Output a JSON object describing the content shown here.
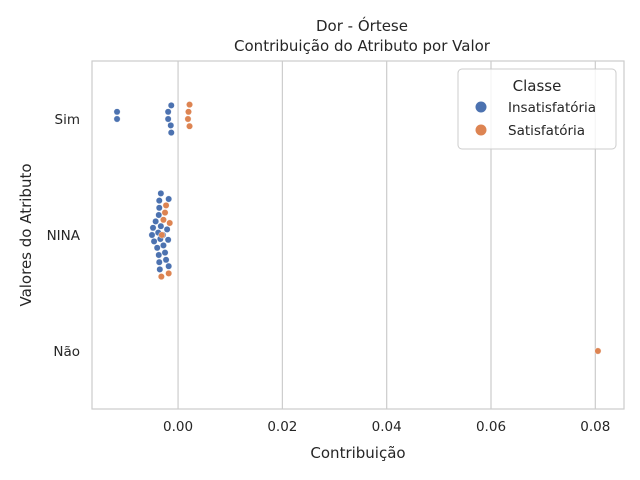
{
  "chart_data": {
    "type": "scatter",
    "subtype": "swarm",
    "title": "Dor - Órtese",
    "subtitle": "Contribuição do Atributo por Valor",
    "xlabel": "Contribuição",
    "ylabel": "Valores do Atributo",
    "xlim": [
      -0.0165,
      0.0855
    ],
    "x_ticks": [
      0.0,
      0.02,
      0.04,
      0.06,
      0.08
    ],
    "x_tick_labels": [
      "0.00",
      "0.02",
      "0.04",
      "0.06",
      "0.08"
    ],
    "categories": [
      "Sim",
      "NINA",
      "Não"
    ],
    "grid": "vertical",
    "legend_position": "top-right",
    "legend": {
      "title": "Classe",
      "entries": [
        "Insatisfatória",
        "Satisfatória"
      ]
    },
    "colors": {
      "Insatisfatória": "#4c72b0",
      "Satisfatória": "#dd8452"
    },
    "series": [
      {
        "name": "Insatisfatória",
        "points": [
          {
            "category": "Sim",
            "x": -0.0117
          },
          {
            "category": "Sim",
            "x": -0.0117
          },
          {
            "category": "Sim",
            "x": -0.0013
          },
          {
            "category": "Sim",
            "x": -0.0019
          },
          {
            "category": "Sim",
            "x": -0.0019
          },
          {
            "category": "Sim",
            "x": -0.0014
          },
          {
            "category": "Sim",
            "x": -0.0013
          },
          {
            "category": "NINA",
            "x": -0.0033
          },
          {
            "category": "NINA",
            "x": -0.0028
          },
          {
            "category": "NINA",
            "x": -0.0018
          },
          {
            "category": "NINA",
            "x": -0.0035
          },
          {
            "category": "NINA",
            "x": -0.0018
          },
          {
            "category": "NINA",
            "x": -0.0036
          },
          {
            "category": "NINA",
            "x": -0.0038
          },
          {
            "category": "NINA",
            "x": -0.0029
          },
          {
            "category": "NINA",
            "x": -0.0043
          },
          {
            "category": "NINA",
            "x": -0.0019
          },
          {
            "category": "NINA",
            "x": -0.0048
          },
          {
            "category": "NINA",
            "x": -0.0033
          },
          {
            "category": "NINA",
            "x": -0.005
          },
          {
            "category": "NINA",
            "x": -0.0037
          },
          {
            "category": "NINA",
            "x": -0.0023
          },
          {
            "category": "NINA",
            "x": -0.0046
          },
          {
            "category": "NINA",
            "x": -0.004
          },
          {
            "category": "NINA",
            "x": -0.0037
          },
          {
            "category": "NINA",
            "x": -0.0025
          },
          {
            "category": "NINA",
            "x": -0.0036
          },
          {
            "category": "NINA",
            "x": -0.0021
          },
          {
            "category": "NINA",
            "x": -0.0036
          },
          {
            "category": "NINA",
            "x": -0.0034
          }
        ]
      },
      {
        "name": "Satisfatória",
        "points": [
          {
            "category": "Sim",
            "x": 0.002
          },
          {
            "category": "Sim",
            "x": 0.0019
          },
          {
            "category": "Sim",
            "x": 0.0022
          },
          {
            "category": "Sim",
            "x": 0.0022
          },
          {
            "category": "NINA",
            "x": -0.0032
          },
          {
            "category": "NINA",
            "x": -0.0023
          },
          {
            "category": "NINA",
            "x": -0.0031
          },
          {
            "category": "NINA",
            "x": -0.0018
          },
          {
            "category": "NINA",
            "x": -0.0025
          },
          {
            "category": "NINA",
            "x": -0.0016
          },
          {
            "category": "NINA",
            "x": -0.0028
          },
          {
            "category": "Não",
            "x": 0.0805
          }
        ]
      }
    ]
  }
}
